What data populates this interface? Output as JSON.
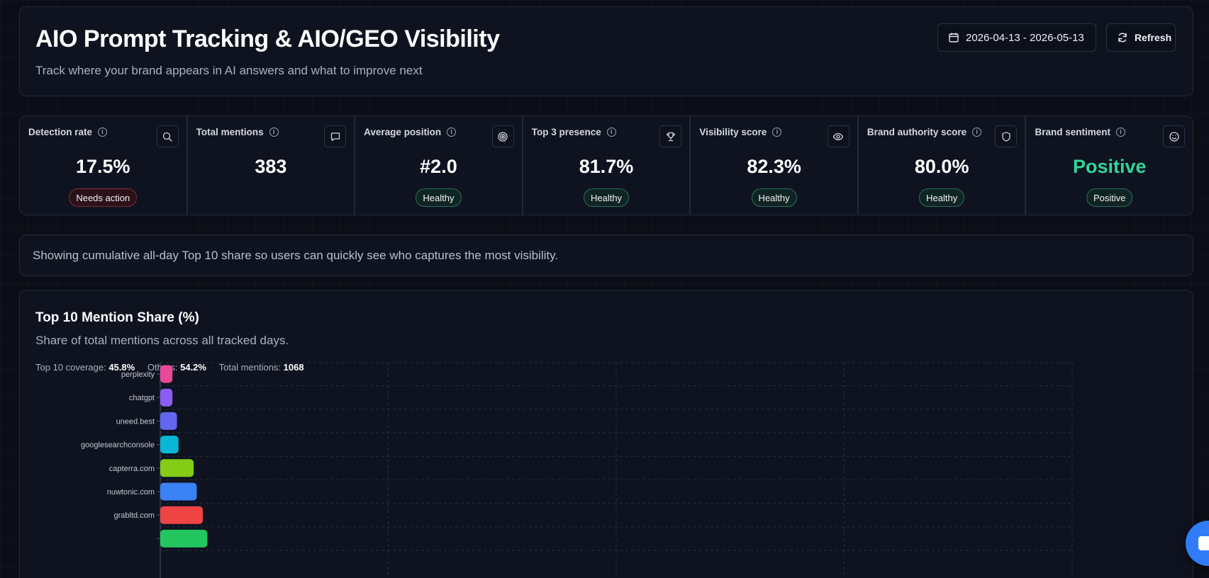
{
  "header": {
    "title": "AIO Prompt Tracking & AIO/GEO Visibility",
    "subtitle": "Track where your brand appears in AI answers and what to improve next",
    "date_range": "2026-04-13 - 2026-05-13",
    "refresh_label": "Refresh"
  },
  "metrics": [
    {
      "label": "Detection rate",
      "value": "17.5%",
      "badge": "Needs action",
      "status": "bad",
      "icon": "search-icon"
    },
    {
      "label": "Total mentions",
      "value": "383",
      "badge": "",
      "status": "",
      "icon": "message-icon"
    },
    {
      "label": "Average position",
      "value": "#2.0",
      "badge": "Healthy",
      "status": "good",
      "icon": "target-icon"
    },
    {
      "label": "Top 3 presence",
      "value": "81.7%",
      "badge": "Healthy",
      "status": "good",
      "icon": "trophy-icon"
    },
    {
      "label": "Visibility score",
      "value": "82.3%",
      "badge": "Healthy",
      "status": "good",
      "icon": "eye-icon"
    },
    {
      "label": "Brand authority score",
      "value": "80.0%",
      "badge": "Healthy",
      "status": "good",
      "icon": "shield-icon"
    },
    {
      "label": "Brand sentiment",
      "value": "Positive",
      "badge": "Positive",
      "status": "good",
      "icon": "smile-icon"
    }
  ],
  "note": "Showing cumulative all-day Top 10 share so users can quickly see who captures the most visibility.",
  "chart_card": {
    "title": "Top 10 Mention Share (%)",
    "subtitle": "Share of total mentions across all tracked days.",
    "stats": {
      "coverage_label": "Top 10 coverage:",
      "coverage_value": "45.8%",
      "others_label": "Others:",
      "others_value": "54.2%",
      "total_label": "Total mentions:",
      "total_value": "1068"
    }
  },
  "chart_data": {
    "type": "bar",
    "orientation": "horizontal",
    "title": "Top 10 Mention Share (%)",
    "categories": [
      "perplexity",
      "chatgpt",
      "uneed.best",
      "googlesearchconsole",
      "capterra.com",
      "nuwtonic.com",
      "grabltd.com",
      ""
    ],
    "values": [
      0.8,
      0.8,
      1.1,
      1.2,
      2.2,
      2.4,
      2.8,
      3.1
    ],
    "colors": [
      "#ec4899",
      "#8b5cf6",
      "#6366f1",
      "#06b6d4",
      "#84cc16",
      "#3b82f6",
      "#ef4444",
      "#22c55e"
    ],
    "xlim": [
      0,
      60
    ],
    "grid": true,
    "legend": "none"
  },
  "chat": {
    "icon": "chat-icon"
  }
}
